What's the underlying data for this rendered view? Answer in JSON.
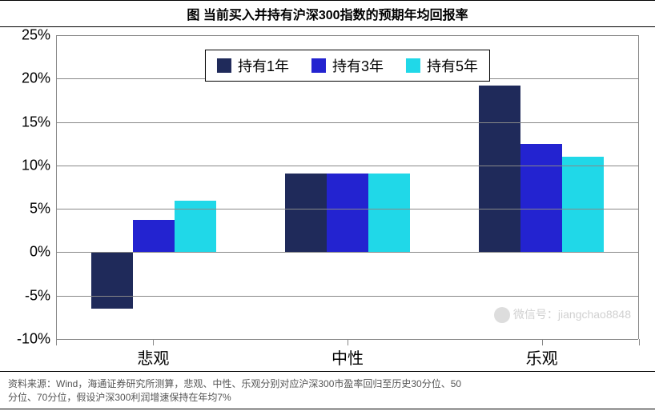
{
  "title": "图 当前买入并持有沪深300指数的预期年均回报率",
  "chart": {
    "type": "bar",
    "ylim": [
      -10,
      25
    ],
    "ytick_step": 5,
    "y_format": "percent",
    "categories": [
      "悲观",
      "中性",
      "乐观"
    ],
    "series": [
      {
        "name": "持有1年",
        "color": "#1f2a5a",
        "values": [
          -6.5,
          9.1,
          19.2
        ]
      },
      {
        "name": "持有3年",
        "color": "#2323d0",
        "values": [
          3.7,
          9.1,
          12.5
        ]
      },
      {
        "name": "持有5年",
        "color": "#20d8e8",
        "values": [
          5.9,
          9.1,
          11.0
        ]
      }
    ],
    "bar_width_pct": 7.2,
    "group_gap_factor": 2.0,
    "background_color": "#ffffff",
    "grid_color": "#888888",
    "axis_fontsize": 18,
    "category_fontsize": 20,
    "legend_fontsize": 18
  },
  "footer": {
    "line1": "资料来源：Wind，海通证券研究所测算，悲观、中性、乐观分别对应沪深300市盈率回归至历史30分位、50",
    "line2": "分位、70分位，假设沪深300利润增速保持在年均7%"
  },
  "watermark": "微信号：jiangchao8848"
}
